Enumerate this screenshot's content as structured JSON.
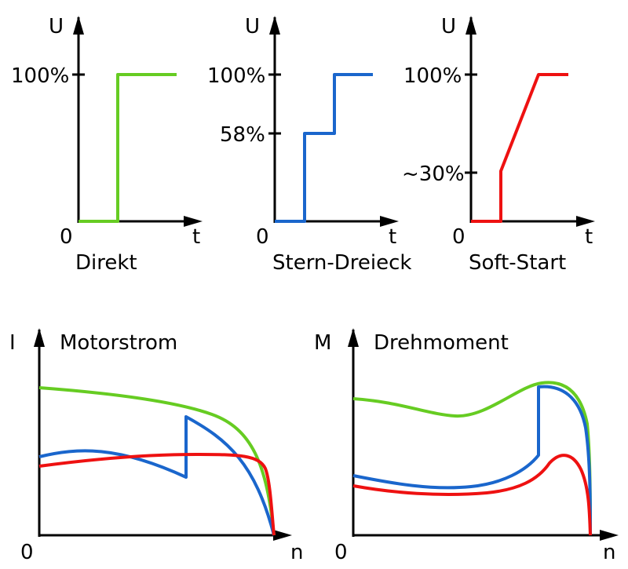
{
  "colors": {
    "direct": "#66cc22",
    "star_delta": "#1a66cc",
    "soft_start": "#ee1111",
    "axis": "#000000"
  },
  "top_panels": [
    {
      "y_label": "U",
      "origin_label": "0",
      "x_label": "t",
      "title": "Direkt",
      "ticks": [
        "100%"
      ]
    },
    {
      "y_label": "U",
      "origin_label": "0",
      "x_label": "t",
      "title": "Stern-Dreieck",
      "ticks": [
        "100%",
        "58%"
      ]
    },
    {
      "y_label": "U",
      "origin_label": "0",
      "x_label": "t",
      "title": "Soft-Start",
      "ticks": [
        "100%",
        "~30%"
      ]
    }
  ],
  "bottom_panels": [
    {
      "y_label": "I",
      "title": "Motorstrom",
      "origin_label": "0",
      "x_label": "n"
    },
    {
      "y_label": "M",
      "title": "Drehmoment",
      "origin_label": "0",
      "x_label": "n"
    }
  ]
}
